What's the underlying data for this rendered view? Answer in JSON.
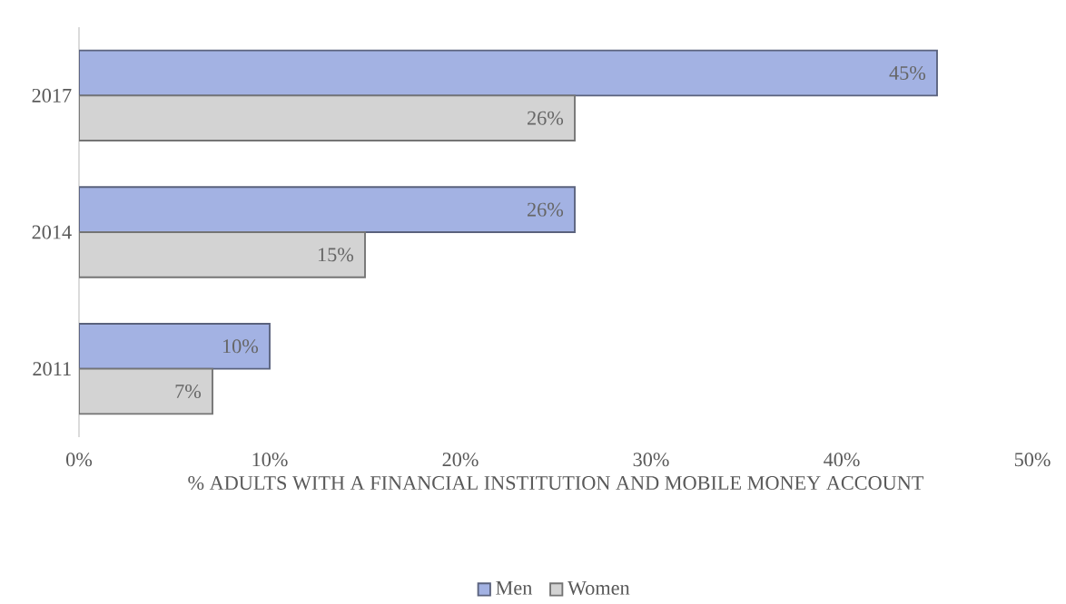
{
  "chart_data": {
    "type": "bar",
    "orientation": "horizontal",
    "xlabel": "% ADULTS WITH A FINANCIAL INSTITUTION AND MOBILE MONEY ACCOUNT",
    "categories": [
      "2017",
      "2014",
      "2011"
    ],
    "series": [
      {
        "name": "Men",
        "color": "#a3b2e3",
        "values": [
          45,
          26,
          10
        ],
        "value_labels": [
          "45%",
          "26%",
          "10%"
        ]
      },
      {
        "name": "Women",
        "color": "#d3d3d3",
        "values": [
          26,
          15,
          7
        ],
        "value_labels": [
          "26%",
          "15%",
          "7%"
        ]
      }
    ],
    "xlim": [
      0,
      50
    ],
    "xticks": [
      {
        "value": 0,
        "label": "0%"
      },
      {
        "value": 10,
        "label": "10%"
      },
      {
        "value": 20,
        "label": "20%"
      },
      {
        "value": 30,
        "label": "30%"
      },
      {
        "value": 40,
        "label": "40%"
      },
      {
        "value": 50,
        "label": "50%"
      }
    ],
    "grid": false,
    "legend": "bottom"
  }
}
